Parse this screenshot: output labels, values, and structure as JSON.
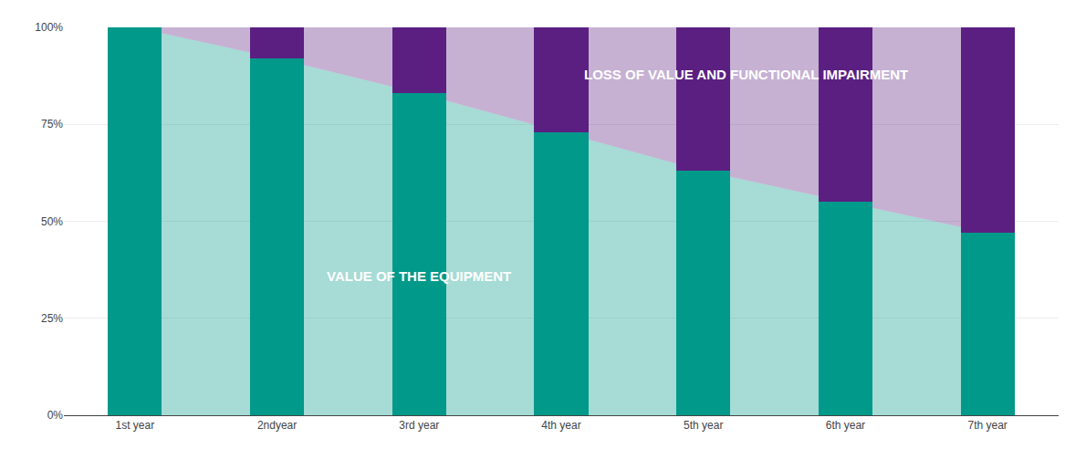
{
  "chart_data": {
    "type": "bar",
    "stacked": true,
    "grid": true,
    "categories": [
      "1st year",
      "2ndyear",
      "3rd year",
      "4th year",
      "5th year",
      "6th year",
      "7th year"
    ],
    "series": [
      {
        "name": "VALUE OF THE EQUIPMENT",
        "color": "#00998A",
        "values": [
          1.0,
          0.92,
          0.83,
          0.73,
          0.63,
          0.55,
          0.47
        ]
      },
      {
        "name": "LOSS OF VALUE AND FUNCTIONAL IMPAIRMENT",
        "color": "#5B1F82",
        "values": [
          0,
          0.08,
          0.17,
          0.27,
          0.37,
          0.45,
          0.53
        ]
      }
    ],
    "ylim": [
      0,
      1
    ],
    "yticks": [
      {
        "value": 0,
        "label": "0%"
      },
      {
        "value": 0.25,
        "label": "25%"
      },
      {
        "value": 0.5,
        "label": "50%"
      },
      {
        "value": 0.75,
        "label": "75%"
      },
      {
        "value": 1,
        "label": "100%"
      }
    ]
  }
}
